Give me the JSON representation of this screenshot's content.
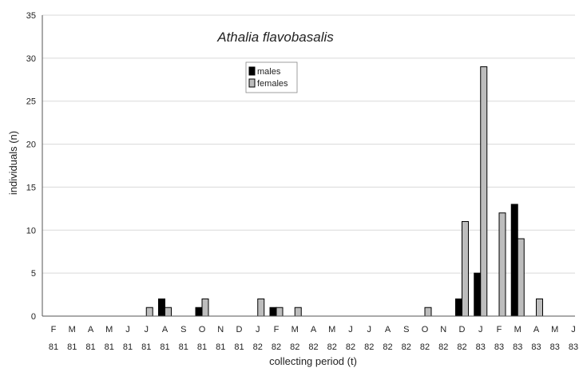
{
  "chart_data": {
    "type": "bar",
    "title": "Athalia flavobasalis",
    "xlabel": "collecting period (t)",
    "ylabel": "individuals (n)",
    "ylim": [
      0,
      35
    ],
    "yticks": [
      0,
      5,
      10,
      15,
      20,
      25,
      30,
      35
    ],
    "grid": true,
    "legend_position": "top-center",
    "categories": [
      {
        "month": "F",
        "year": "81"
      },
      {
        "month": "M",
        "year": "81"
      },
      {
        "month": "A",
        "year": "81"
      },
      {
        "month": "M",
        "year": "81"
      },
      {
        "month": "J",
        "year": "81"
      },
      {
        "month": "J",
        "year": "81"
      },
      {
        "month": "A",
        "year": "81"
      },
      {
        "month": "S",
        "year": "81"
      },
      {
        "month": "O",
        "year": "81"
      },
      {
        "month": "N",
        "year": "81"
      },
      {
        "month": "D",
        "year": "81"
      },
      {
        "month": "J",
        "year": "82"
      },
      {
        "month": "F",
        "year": "82"
      },
      {
        "month": "M",
        "year": "82"
      },
      {
        "month": "A",
        "year": "82"
      },
      {
        "month": "M",
        "year": "82"
      },
      {
        "month": "J",
        "year": "82"
      },
      {
        "month": "J",
        "year": "82"
      },
      {
        "month": "A",
        "year": "82"
      },
      {
        "month": "S",
        "year": "82"
      },
      {
        "month": "O",
        "year": "82"
      },
      {
        "month": "N",
        "year": "82"
      },
      {
        "month": "D",
        "year": "82"
      },
      {
        "month": "J",
        "year": "83"
      },
      {
        "month": "F",
        "year": "83"
      },
      {
        "month": "M",
        "year": "83"
      },
      {
        "month": "A",
        "year": "83"
      },
      {
        "month": "M",
        "year": "83"
      },
      {
        "month": "J",
        "year": "83"
      }
    ],
    "series": [
      {
        "name": "males",
        "color": "#000000",
        "values": [
          0,
          0,
          0,
          0,
          0,
          0,
          2,
          0,
          1,
          0,
          0,
          0,
          1,
          0,
          0,
          0,
          0,
          0,
          0,
          0,
          0,
          0,
          2,
          5,
          0,
          13,
          0,
          0,
          0
        ]
      },
      {
        "name": "females",
        "color": "#bdbdbd",
        "values": [
          0,
          0,
          0,
          0,
          0,
          1,
          1,
          0,
          2,
          0,
          0,
          2,
          1,
          1,
          0,
          0,
          0,
          0,
          0,
          0,
          1,
          0,
          11,
          29,
          12,
          9,
          2,
          0,
          0
        ]
      }
    ]
  }
}
